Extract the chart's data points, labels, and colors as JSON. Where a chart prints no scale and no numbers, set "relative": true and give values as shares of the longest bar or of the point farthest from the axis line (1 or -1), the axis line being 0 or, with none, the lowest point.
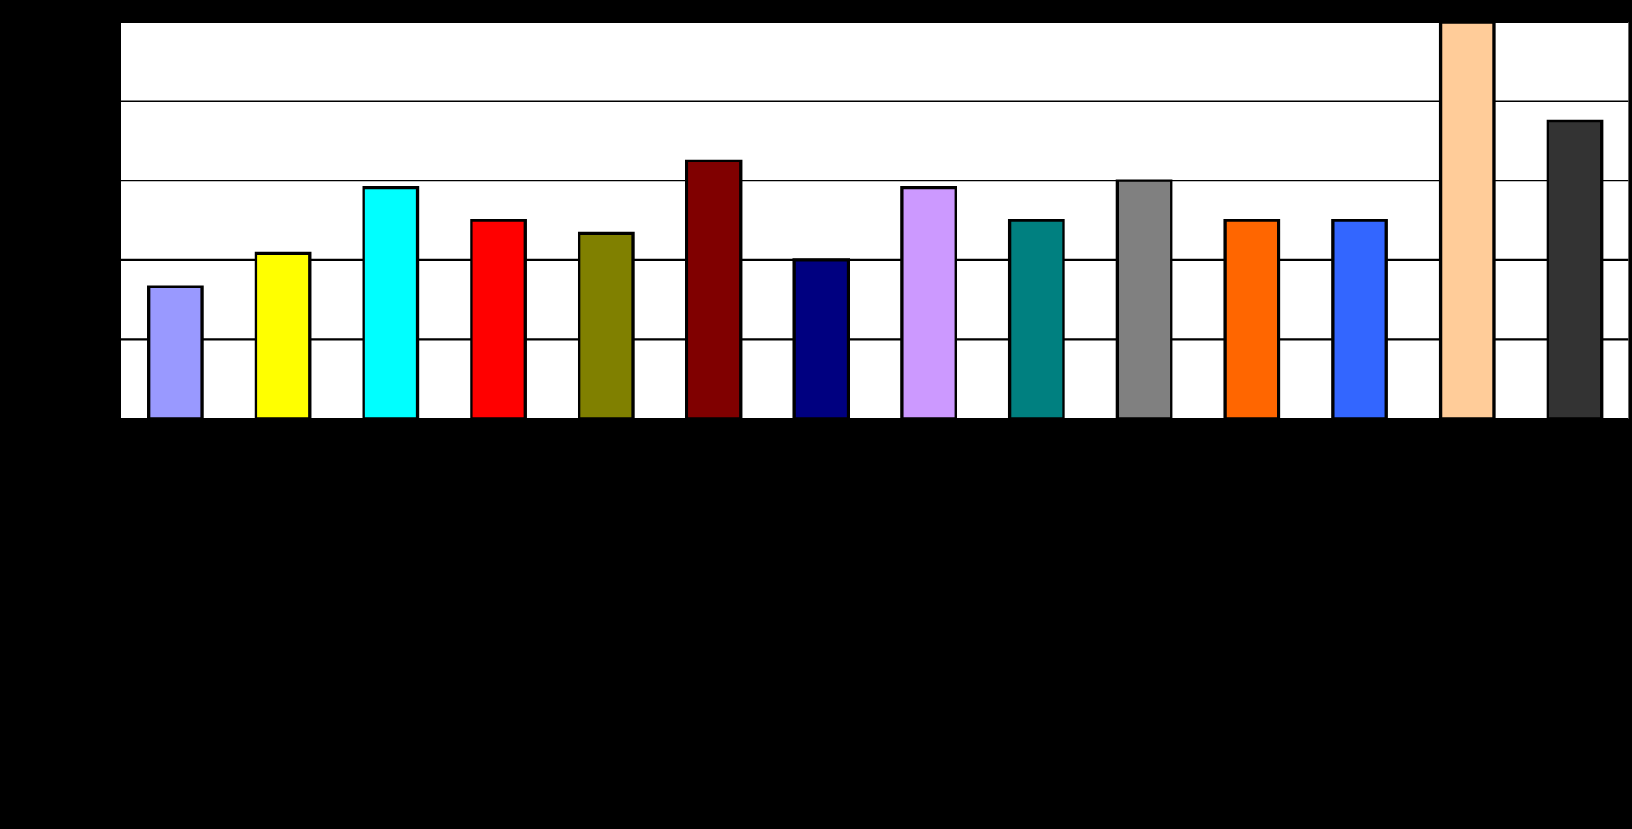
{
  "chart_data": {
    "type": "bar",
    "relative": true,
    "grid": "y",
    "categories": [
      null,
      null,
      null,
      null,
      null,
      null,
      null,
      null,
      null,
      null,
      null,
      null,
      null,
      null
    ],
    "values": [
      0.333,
      0.417,
      0.583,
      0.5,
      0.467,
      0.65,
      0.4,
      0.583,
      0.5,
      0.6,
      0.5,
      0.5,
      1,
      0.75
    ],
    "colors": [
      "#9999ff",
      "#ffff00",
      "#00ffff",
      "#ff0000",
      "#808000",
      "#800000",
      "#000080",
      "#cc99ff",
      "#008080",
      "#808080",
      "#ff6600",
      "#3366ff",
      "#ffcc99",
      "#333333"
    ]
  }
}
